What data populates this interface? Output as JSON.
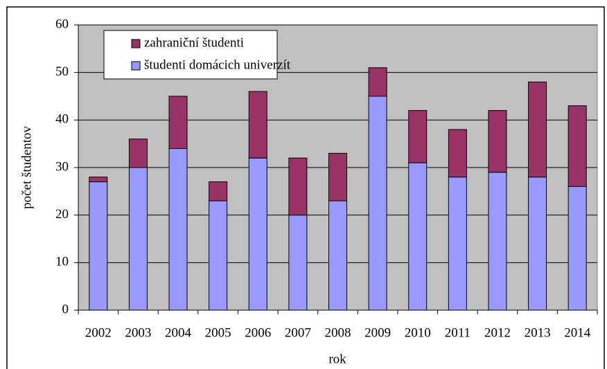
{
  "chart_data": {
    "type": "stacked_bar",
    "categories": [
      "2002",
      "2003",
      "2004",
      "2005",
      "2006",
      "2007",
      "2008",
      "2009",
      "2010",
      "2011",
      "2012",
      "2013",
      "2014"
    ],
    "series": [
      {
        "name": "študenti domácich univerzít",
        "color": "#9999ff",
        "values": [
          27,
          30,
          34,
          23,
          32,
          20,
          23,
          45,
          31,
          28,
          29,
          28,
          26
        ]
      },
      {
        "name": "zahraniční študenti",
        "color": "#993366",
        "values": [
          1,
          6,
          11,
          4,
          14,
          12,
          10,
          6,
          11,
          10,
          13,
          20,
          17
        ]
      }
    ],
    "xlabel": "rok",
    "ylabel": "počet študentov",
    "ylim": [
      0,
      60
    ],
    "yticks": [
      0,
      10,
      20,
      30,
      40,
      50,
      60
    ],
    "grid": true,
    "legend": "upper left"
  }
}
